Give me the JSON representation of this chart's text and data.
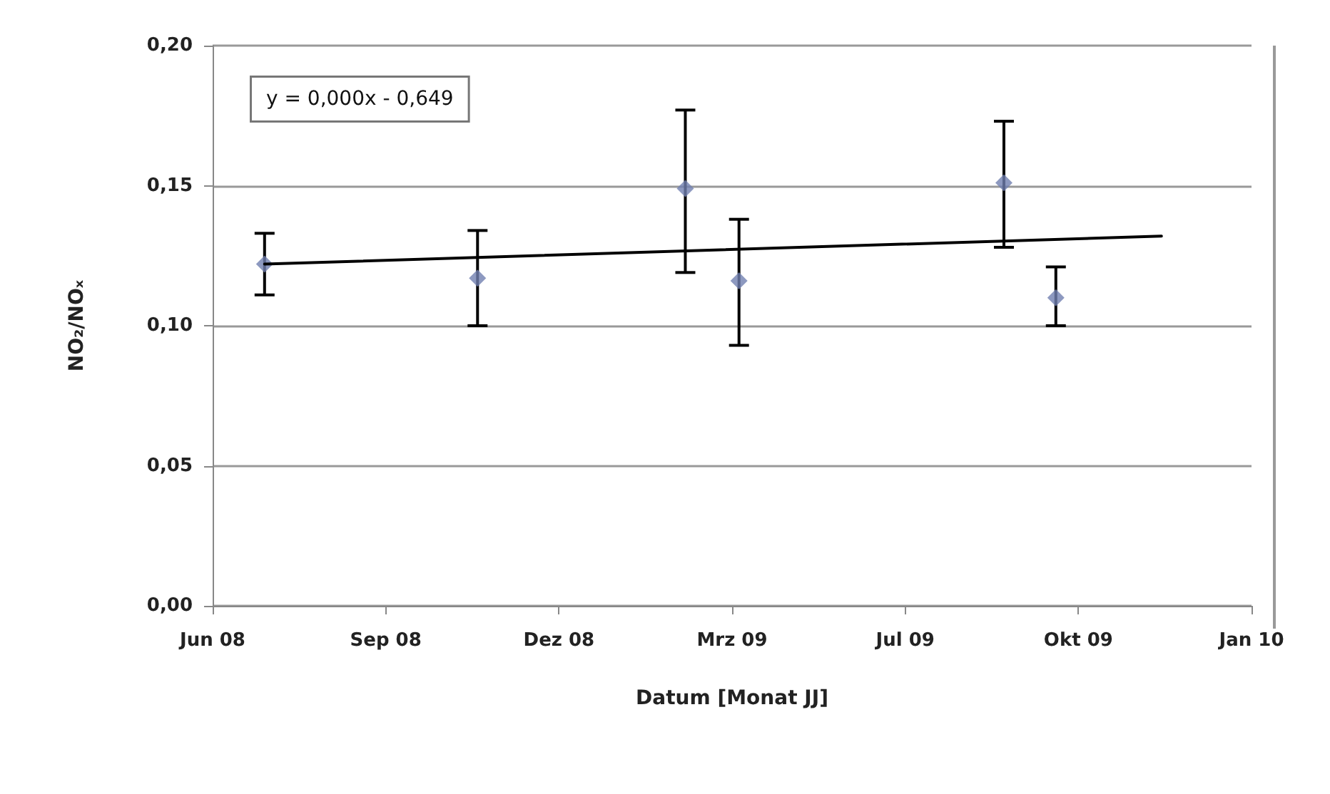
{
  "chart_data": {
    "type": "scatter",
    "xlabel": "Datum [Monat JJ]",
    "ylabel": "NO₂/NOₓ",
    "annotations": [
      "y = 0,000x - 0,649"
    ],
    "xlim": [
      "2008-06-01",
      "2010-01-22"
    ],
    "xticks": [
      {
        "value": "2008-06-01",
        "label": "Jun 08"
      },
      {
        "value": "2008-09-09",
        "label": "Sep 08"
      },
      {
        "value": "2008-12-18",
        "label": "Dez 08"
      },
      {
        "value": "2009-03-28",
        "label": "Mrz 09"
      },
      {
        "value": "2009-07-06",
        "label": "Jul 09"
      },
      {
        "value": "2009-10-14",
        "label": "Okt 09"
      },
      {
        "value": "2010-01-22",
        "label": "Jan 10"
      }
    ],
    "ylim": [
      0,
      0.2
    ],
    "yticks": [
      {
        "value": 0,
        "label": "0,00"
      },
      {
        "value": 0.05,
        "label": "0,05"
      },
      {
        "value": 0.1,
        "label": "0,10"
      },
      {
        "value": 0.15,
        "label": "0,15"
      },
      {
        "value": 0.2,
        "label": "0,20"
      }
    ],
    "grid": "y",
    "marker": "diamond",
    "series": [
      {
        "color": "#7080b0",
        "x": [
          "2008-07-01",
          "2008-11-01",
          "2009-03-01",
          "2009-04-01",
          "2009-09-01",
          "2009-10-01"
        ],
        "values": [
          0.122,
          0.117,
          0.149,
          0.116,
          0.151,
          0.11
        ],
        "errors": [
          [
            0.111,
            0.133
          ],
          [
            0.1,
            0.134
          ],
          [
            0.119,
            0.177
          ],
          [
            0.093,
            0.138
          ],
          [
            0.128,
            0.173
          ],
          [
            0.1,
            0.121
          ]
        ]
      },
      {
        "type": "line",
        "color": "#000000",
        "marker": "none",
        "x": [
          "2008-07-01",
          "2009-12-01"
        ],
        "values": [
          0.122,
          0.132
        ]
      }
    ]
  }
}
